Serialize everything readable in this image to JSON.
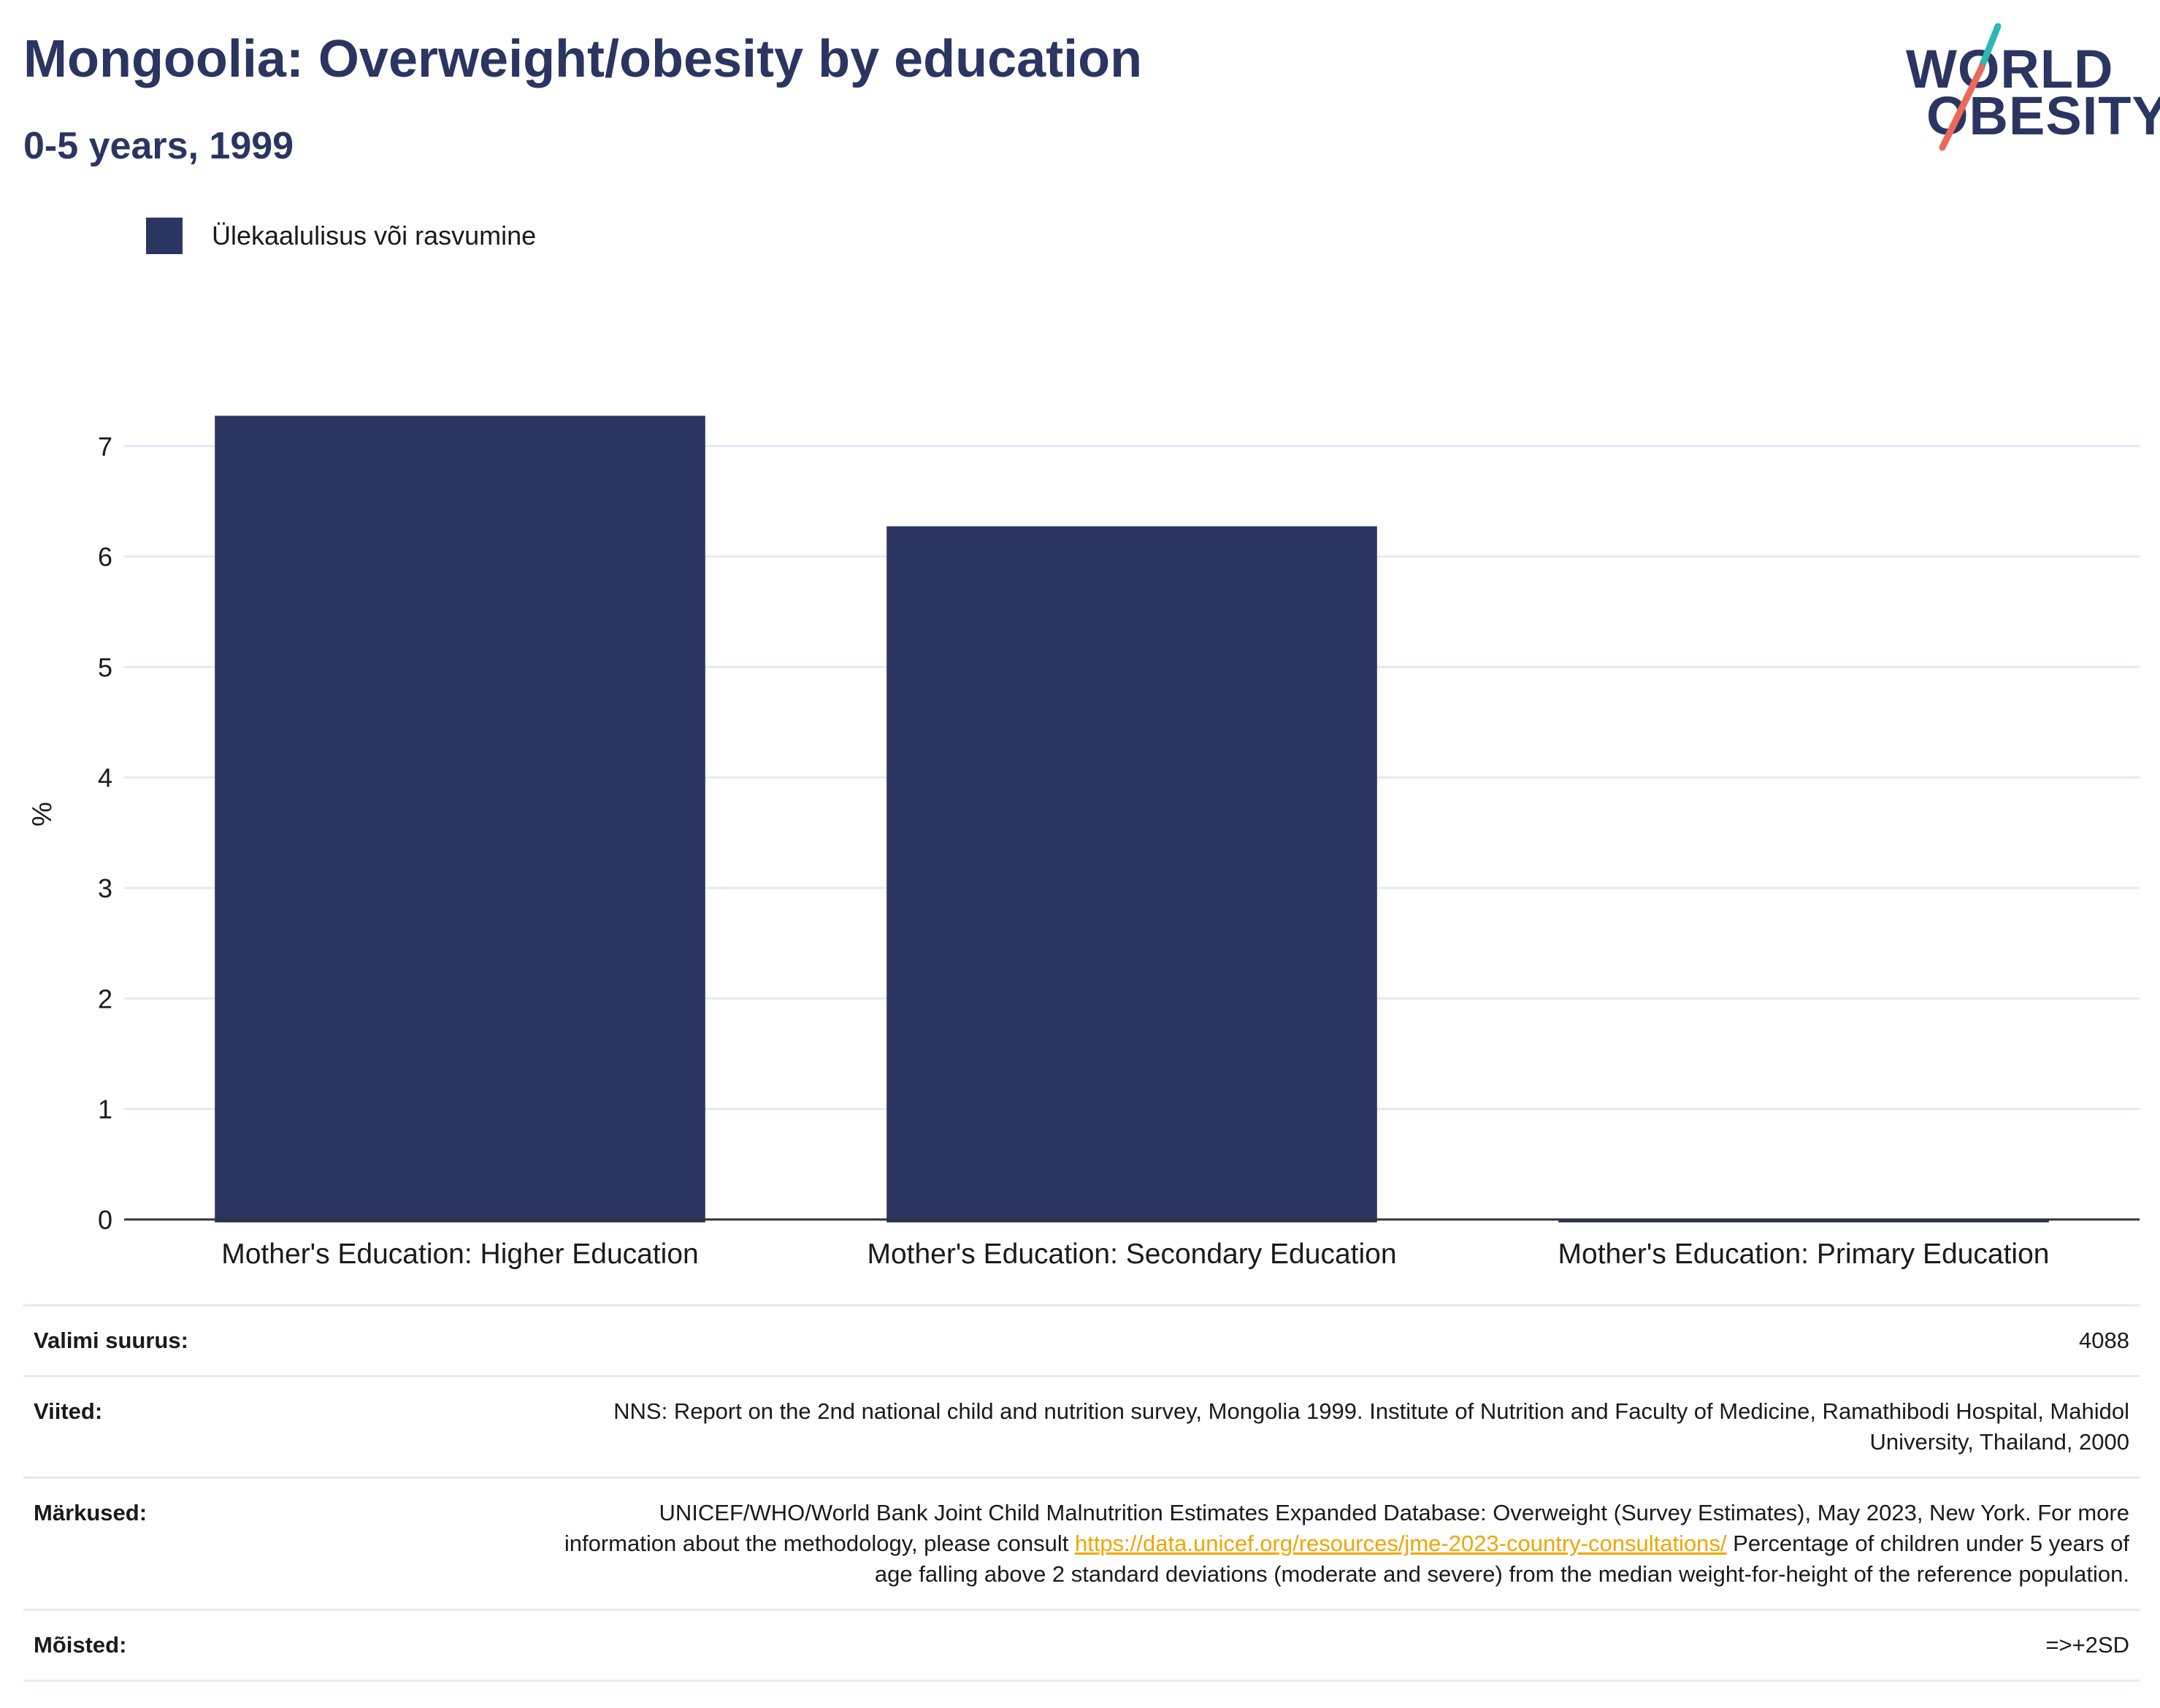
{
  "header": {
    "title": "Mongoolia: Overweight/obesity by education",
    "subtitle": "0-5 years, 1999",
    "logo_line1": "WORLD",
    "logo_line2": "OBESITY"
  },
  "colors": {
    "bar": "#2a3661",
    "title": "#2a3661",
    "logo_teal": "#2bb9b4",
    "logo_coral": "#ec6a5c",
    "link": "#f0a500",
    "grid": "#e6e9f2"
  },
  "legend": {
    "label": "Ülekaalulisus või rasvumine"
  },
  "chart_data": {
    "type": "bar",
    "categories": [
      "Mother's Education: Higher Education",
      "Mother's Education: Secondary Education",
      "Mother's Education: Primary Education"
    ],
    "series": [
      {
        "name": "Ülekaalulisus või rasvumine",
        "values": [
          7.3,
          6.3,
          0.03
        ]
      }
    ],
    "ylabel": "%",
    "xlabel": "",
    "ylim": [
      0,
      7.6
    ],
    "yticks": [
      0,
      1,
      2,
      3,
      4,
      5,
      6,
      7
    ],
    "grid": true,
    "legend_position": "top-left"
  },
  "footer": {
    "sample_label": "Valimi suurus:",
    "sample_value": "4088",
    "refs_label": "Viited:",
    "refs_value": "NNS: Report on the 2nd national child and nutrition survey, Mongolia 1999. Institute of Nutrition and Faculty of Medicine, Ramathibodi Hospital, Mahidol University, Thailand, 2000",
    "notes_label": "Märkused:",
    "notes_text1": "UNICEF/WHO/World Bank Joint Child Malnutrition Estimates Expanded Database: Overweight (Survey Estimates), May 2023, New York. For more information about the methodology, please consult ",
    "notes_link": "https://data.unicef.org/resources/jme-2023-country-consultations/",
    "notes_text2": " Percentage of children under 5 years of age falling above 2 standard deviations (moderate and severe) from the median weight-for-height of the reference population.",
    "defs_label": "Mõisted:",
    "defs_value": "=>+2SD"
  }
}
